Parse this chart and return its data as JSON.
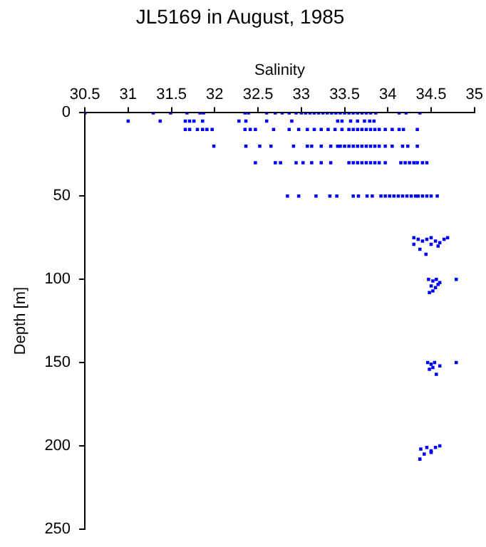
{
  "chart_data": {
    "type": "scatter",
    "title": "JL5169 in August, 1985",
    "xlabel": "Salinity",
    "ylabel": "Depth [m]",
    "xlim": [
      30.5,
      35
    ],
    "xticks": [
      30.5,
      31,
      31.5,
      32,
      32.5,
      33,
      33.5,
      34,
      34.5,
      35
    ],
    "ylim": [
      250,
      0
    ],
    "yticks": [
      0,
      50,
      100,
      150,
      200,
      250
    ],
    "marker": "square",
    "series": [
      {
        "color": "#0000ff",
        "x": [
          30.5,
          31.29,
          31.49,
          31.68,
          31.83,
          31.87,
          32.35,
          32.39,
          32.6,
          32.7,
          32.78,
          32.86,
          32.94,
          33.0,
          33.05,
          33.1,
          33.15,
          33.2,
          33.25,
          33.3,
          33.35,
          33.4,
          33.45,
          33.5,
          33.55,
          33.6,
          33.65,
          33.7,
          33.75,
          33.8,
          33.86,
          34.13,
          34.21,
          34.37,
          31.0,
          31.37,
          31.66,
          31.71,
          31.76,
          31.86,
          32.28,
          32.36,
          32.6,
          32.89,
          33.42,
          33.47,
          33.57,
          33.65,
          33.73,
          33.79,
          33.84,
          31.66,
          31.71,
          31.8,
          31.86,
          31.91,
          31.97,
          32.35,
          32.41,
          32.47,
          32.68,
          32.86,
          32.97,
          33.07,
          33.15,
          33.23,
          33.31,
          33.39,
          33.47,
          33.55,
          33.6,
          33.65,
          33.7,
          33.75,
          33.8,
          33.85,
          33.9,
          33.97,
          34.05,
          34.13,
          34.18,
          34.34,
          31.99,
          32.36,
          32.52,
          32.65,
          32.91,
          33.07,
          33.12,
          33.23,
          33.34,
          33.42,
          33.45,
          33.5,
          33.55,
          33.6,
          33.65,
          33.7,
          33.75,
          33.8,
          33.85,
          33.9,
          33.97,
          34.05,
          34.17,
          34.23,
          34.34,
          32.47,
          32.7,
          32.76,
          32.94,
          33.02,
          33.12,
          33.23,
          33.34,
          33.55,
          33.6,
          33.65,
          33.7,
          33.75,
          33.8,
          33.85,
          33.9,
          33.97,
          34.15,
          34.2,
          34.25,
          34.3,
          34.34,
          34.4,
          34.45,
          32.84,
          32.97,
          33.17,
          33.33,
          33.41,
          33.6,
          33.66,
          33.76,
          33.82,
          33.92,
          33.97,
          34.02,
          34.07,
          34.12,
          34.17,
          34.22,
          34.27,
          34.32,
          34.35,
          34.4,
          34.45,
          34.5,
          34.57,
          34.3,
          34.35,
          34.4,
          34.45,
          34.5,
          34.55,
          34.6,
          34.65,
          34.69,
          34.3,
          34.37,
          34.44,
          34.5,
          34.58,
          34.47,
          34.52,
          34.56,
          34.6,
          34.5,
          34.55,
          34.58,
          34.52,
          34.48,
          34.79,
          34.46,
          34.5,
          34.54,
          34.6,
          34.52,
          34.48,
          34.56,
          34.79,
          34.38,
          34.45,
          34.5,
          34.55,
          34.6,
          34.42,
          34.5,
          34.37
        ],
        "values": [
          0,
          0,
          0,
          0,
          0,
          0,
          0,
          0,
          0,
          0,
          0,
          0,
          0,
          0,
          0,
          0,
          0,
          0,
          0,
          0,
          0,
          0,
          0,
          0,
          0,
          0,
          0,
          0,
          0,
          0,
          0,
          0,
          0,
          0,
          5,
          5,
          5,
          5,
          5,
          5,
          5,
          5,
          5,
          5,
          5,
          5,
          5,
          5,
          5,
          5,
          5,
          10,
          10,
          10,
          10,
          10,
          10,
          10,
          10,
          10,
          10,
          10,
          10,
          10,
          10,
          10,
          10,
          10,
          10,
          10,
          10,
          10,
          10,
          10,
          10,
          10,
          10,
          10,
          10,
          10,
          10,
          10,
          20,
          20,
          20,
          20,
          20,
          20,
          20,
          20,
          20,
          20,
          20,
          20,
          20,
          20,
          20,
          20,
          20,
          20,
          20,
          20,
          20,
          20,
          20,
          20,
          20,
          30,
          30,
          30,
          30,
          30,
          30,
          30,
          30,
          30,
          30,
          30,
          30,
          30,
          30,
          30,
          30,
          30,
          30,
          30,
          30,
          30,
          30,
          30,
          30,
          50,
          50,
          50,
          50,
          50,
          50,
          50,
          50,
          50,
          50,
          50,
          50,
          50,
          50,
          50,
          50,
          50,
          50,
          50,
          50,
          50,
          50,
          50,
          75,
          76,
          77,
          76,
          75,
          77,
          78,
          76,
          75,
          79,
          82,
          85,
          79,
          80,
          100,
          101,
          100,
          102,
          104,
          105,
          103,
          107,
          108,
          100,
          150,
          151,
          150,
          152,
          153,
          154,
          157,
          150,
          202,
          201,
          203,
          201,
          200,
          205,
          204,
          208
        ]
      }
    ]
  }
}
